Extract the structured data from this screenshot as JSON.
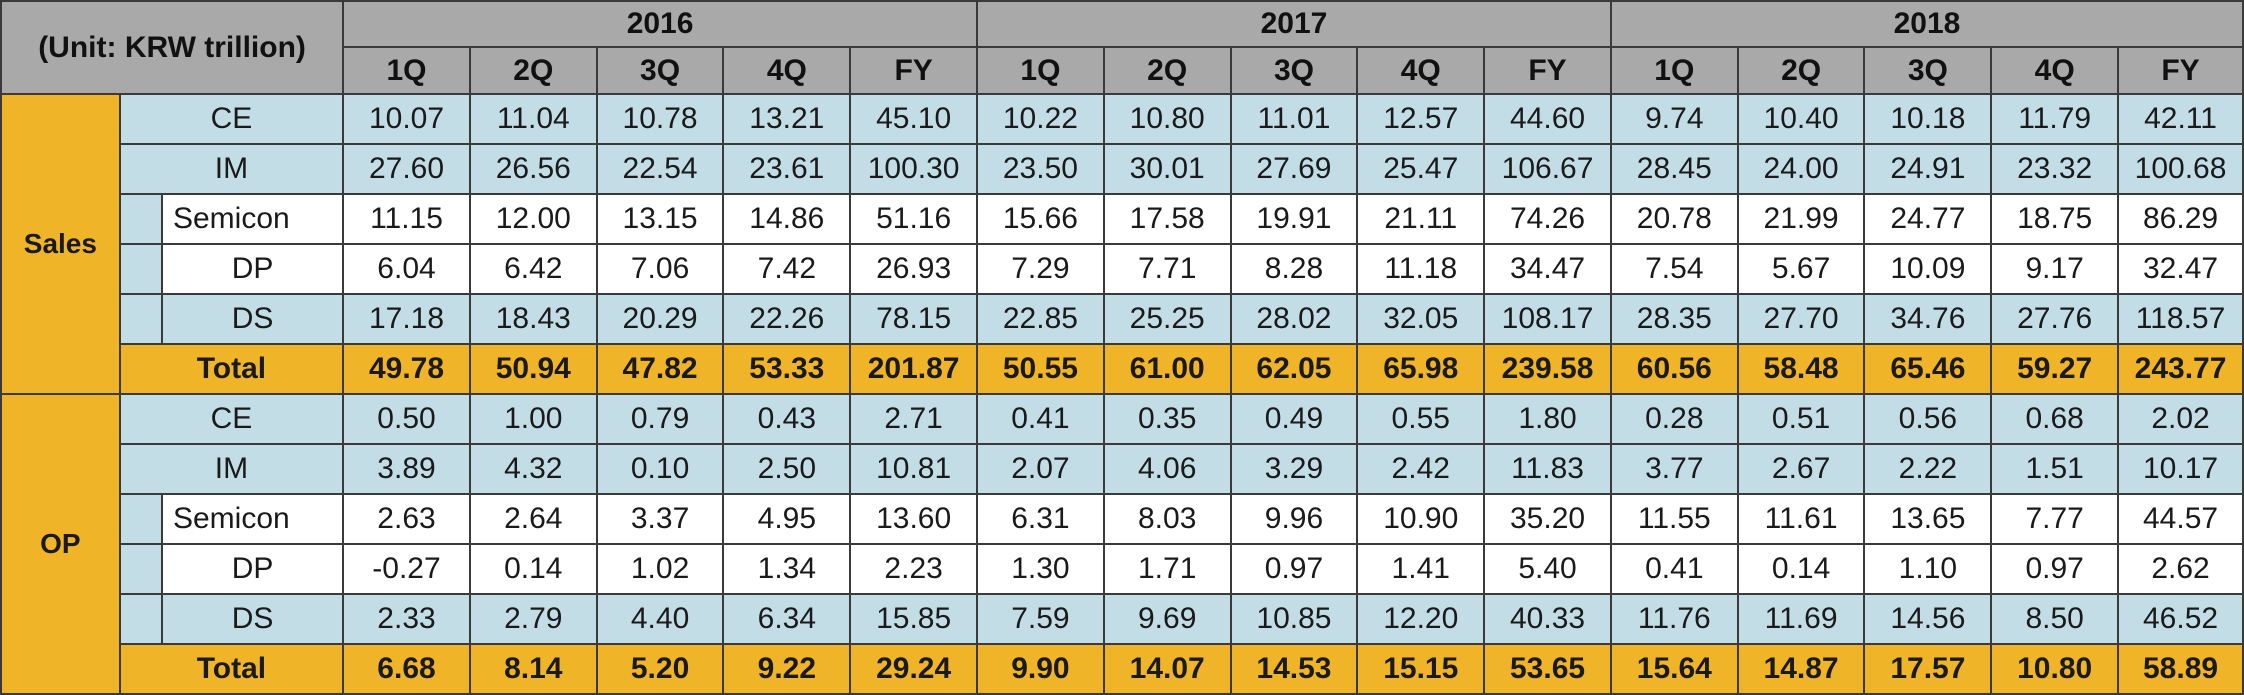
{
  "header": {
    "unit_label": "(Unit: KRW trillion)",
    "years": [
      "2016",
      "2017",
      "2018"
    ],
    "periods": [
      "1Q",
      "2Q",
      "3Q",
      "4Q",
      "FY"
    ]
  },
  "sections": [
    {
      "name": "Sales",
      "rows": [
        {
          "label": "CE",
          "values": [
            "10.07",
            "11.04",
            "10.78",
            "13.21",
            "45.10",
            "10.22",
            "10.80",
            "11.01",
            "12.57",
            "44.60",
            "9.74",
            "10.40",
            "10.18",
            "11.79",
            "42.11"
          ]
        },
        {
          "label": "IM",
          "values": [
            "27.60",
            "26.56",
            "22.54",
            "23.61",
            "100.30",
            "23.50",
            "30.01",
            "27.69",
            "25.47",
            "106.67",
            "28.45",
            "24.00",
            "24.91",
            "23.32",
            "100.68"
          ]
        },
        {
          "label": "Semicon",
          "values": [
            "11.15",
            "12.00",
            "13.15",
            "14.86",
            "51.16",
            "15.66",
            "17.58",
            "19.91",
            "21.11",
            "74.26",
            "20.78",
            "21.99",
            "24.77",
            "18.75",
            "86.29"
          ]
        },
        {
          "label": "DP",
          "values": [
            "6.04",
            "6.42",
            "7.06",
            "7.42",
            "26.93",
            "7.29",
            "7.71",
            "8.28",
            "11.18",
            "34.47",
            "7.54",
            "5.67",
            "10.09",
            "9.17",
            "32.47"
          ]
        },
        {
          "label": "DS",
          "values": [
            "17.18",
            "18.43",
            "20.29",
            "22.26",
            "78.15",
            "22.85",
            "25.25",
            "28.02",
            "32.05",
            "108.17",
            "28.35",
            "27.70",
            "34.76",
            "27.76",
            "118.57"
          ]
        },
        {
          "label": "Total",
          "values": [
            "49.78",
            "50.94",
            "47.82",
            "53.33",
            "201.87",
            "50.55",
            "61.00",
            "62.05",
            "65.98",
            "239.58",
            "60.56",
            "58.48",
            "65.46",
            "59.27",
            "243.77"
          ]
        }
      ]
    },
    {
      "name": "OP",
      "rows": [
        {
          "label": "CE",
          "values": [
            "0.50",
            "1.00",
            "0.79",
            "0.43",
            "2.71",
            "0.41",
            "0.35",
            "0.49",
            "0.55",
            "1.80",
            "0.28",
            "0.51",
            "0.56",
            "0.68",
            "2.02"
          ]
        },
        {
          "label": "IM",
          "values": [
            "3.89",
            "4.32",
            "0.10",
            "2.50",
            "10.81",
            "2.07",
            "4.06",
            "3.29",
            "2.42",
            "11.83",
            "3.77",
            "2.67",
            "2.22",
            "1.51",
            "10.17"
          ]
        },
        {
          "label": "Semicon",
          "values": [
            "2.63",
            "2.64",
            "3.37",
            "4.95",
            "13.60",
            "6.31",
            "8.03",
            "9.96",
            "10.90",
            "35.20",
            "11.55",
            "11.61",
            "13.65",
            "7.77",
            "44.57"
          ]
        },
        {
          "label": "DP",
          "values": [
            "-0.27",
            "0.14",
            "1.02",
            "1.34",
            "2.23",
            "1.30",
            "1.71",
            "0.97",
            "1.41",
            "5.40",
            "0.41",
            "0.14",
            "1.10",
            "0.97",
            "2.62"
          ]
        },
        {
          "label": "DS",
          "values": [
            "2.33",
            "2.79",
            "4.40",
            "6.34",
            "15.85",
            "7.59",
            "9.69",
            "10.85",
            "12.20",
            "40.33",
            "11.76",
            "11.69",
            "14.56",
            "8.50",
            "46.52"
          ]
        },
        {
          "label": "Total",
          "values": [
            "6.68",
            "8.14",
            "5.20",
            "9.22",
            "29.24",
            "9.90",
            "14.07",
            "14.53",
            "15.15",
            "53.65",
            "15.64",
            "14.87",
            "17.57",
            "10.80",
            "58.89"
          ]
        }
      ]
    }
  ],
  "colors": {
    "header_gray": "#a9a9a9",
    "section_gold": "#f0b429",
    "row_blue": "#c3dde7",
    "row_white": "#ffffff"
  }
}
